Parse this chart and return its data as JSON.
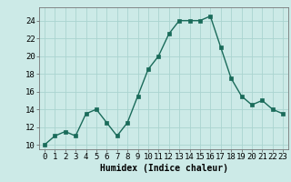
{
  "x": [
    0,
    1,
    2,
    3,
    4,
    5,
    6,
    7,
    8,
    9,
    10,
    11,
    12,
    13,
    14,
    15,
    16,
    17,
    18,
    19,
    20,
    21,
    22,
    23
  ],
  "y": [
    10,
    11,
    11.5,
    11,
    13.5,
    14,
    12.5,
    11,
    12.5,
    15.5,
    18.5,
    20,
    22.5,
    24,
    24,
    24,
    24.5,
    21,
    17.5,
    15.5,
    14.5,
    15,
    14,
    13.5
  ],
  "line_color": "#1a6b5a",
  "marker_color": "#1a6b5a",
  "bg_color": "#cceae7",
  "grid_color": "#aad4d0",
  "xlabel": "Humidex (Indice chaleur)",
  "ylim": [
    9.5,
    25.5
  ],
  "yticks": [
    10,
    12,
    14,
    16,
    18,
    20,
    22,
    24
  ],
  "xlim": [
    -0.5,
    23.5
  ],
  "xticks": [
    0,
    1,
    2,
    3,
    4,
    5,
    6,
    7,
    8,
    9,
    10,
    11,
    12,
    13,
    14,
    15,
    16,
    17,
    18,
    19,
    20,
    21,
    22,
    23
  ],
  "xlabel_fontsize": 7,
  "tick_fontsize": 6.5,
  "line_width": 1.0,
  "marker_size": 2.5
}
